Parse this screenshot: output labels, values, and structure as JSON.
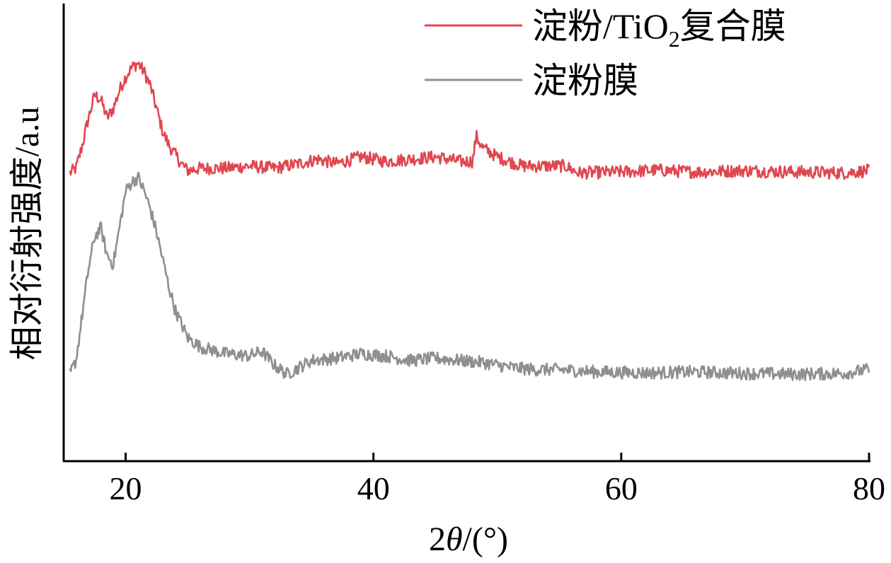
{
  "chart_data": {
    "type": "line",
    "title": "",
    "xlabel_parts": {
      "lead": "2",
      "var": "θ",
      "unit": "/(°)"
    },
    "ylabel": "相对衍射强度/a.u",
    "xlim": [
      15,
      80
    ],
    "ylim": [
      0,
      1
    ],
    "x_ticks": [
      20,
      40,
      60,
      80
    ],
    "x_tick_labels": [
      "20",
      "40",
      "60",
      "80"
    ],
    "y_ticks_shown": false,
    "grid": false,
    "legend_placement": "top-right",
    "series": [
      {
        "name_parts": {
          "base": "淀粉/TiO",
          "sub": "2",
          "rest": "复合膜"
        },
        "color": "#e0474f",
        "x": [
          15.5,
          16.0,
          16.5,
          17.0,
          17.5,
          18.0,
          18.5,
          19.0,
          19.5,
          20.0,
          20.5,
          21.0,
          21.5,
          22.0,
          22.5,
          23.0,
          23.5,
          24.0,
          24.5,
          25.0,
          26,
          28,
          30,
          32,
          34,
          35.5,
          37,
          39,
          41,
          43,
          45,
          47,
          48.0,
          48.3,
          48.8,
          50,
          52,
          54,
          55.5,
          56.5,
          60,
          63,
          66,
          70,
          74,
          78,
          80
        ],
        "y": [
          0.63,
          0.64,
          0.69,
          0.75,
          0.8,
          0.79,
          0.75,
          0.77,
          0.81,
          0.84,
          0.86,
          0.87,
          0.85,
          0.82,
          0.77,
          0.72,
          0.69,
          0.67,
          0.65,
          0.635,
          0.64,
          0.64,
          0.645,
          0.64,
          0.65,
          0.66,
          0.65,
          0.665,
          0.655,
          0.66,
          0.665,
          0.655,
          0.655,
          0.71,
          0.685,
          0.665,
          0.645,
          0.645,
          0.645,
          0.63,
          0.632,
          0.636,
          0.632,
          0.635,
          0.632,
          0.63,
          0.635
        ]
      },
      {
        "name": "淀粉膜",
        "color": "#8f8f8f",
        "x": [
          15.5,
          16.0,
          16.5,
          17.0,
          17.5,
          18.0,
          18.5,
          19.0,
          19.5,
          20.0,
          20.5,
          21.0,
          21.5,
          22.0,
          22.5,
          23.0,
          23.5,
          24.0,
          24.5,
          25.0,
          26,
          28,
          30,
          31,
          32,
          33,
          35,
          37,
          39,
          41,
          43,
          45,
          47,
          49,
          51,
          53,
          55,
          58,
          62,
          66,
          70,
          74,
          78,
          80
        ],
        "y": [
          0.19,
          0.22,
          0.32,
          0.42,
          0.49,
          0.51,
          0.45,
          0.43,
          0.51,
          0.59,
          0.61,
          0.62,
          0.59,
          0.55,
          0.5,
          0.44,
          0.38,
          0.33,
          0.3,
          0.27,
          0.25,
          0.235,
          0.23,
          0.24,
          0.21,
          0.19,
          0.22,
          0.225,
          0.235,
          0.23,
          0.22,
          0.225,
          0.22,
          0.215,
          0.205,
          0.2,
          0.2,
          0.195,
          0.193,
          0.195,
          0.192,
          0.19,
          0.192,
          0.2
        ]
      }
    ]
  }
}
